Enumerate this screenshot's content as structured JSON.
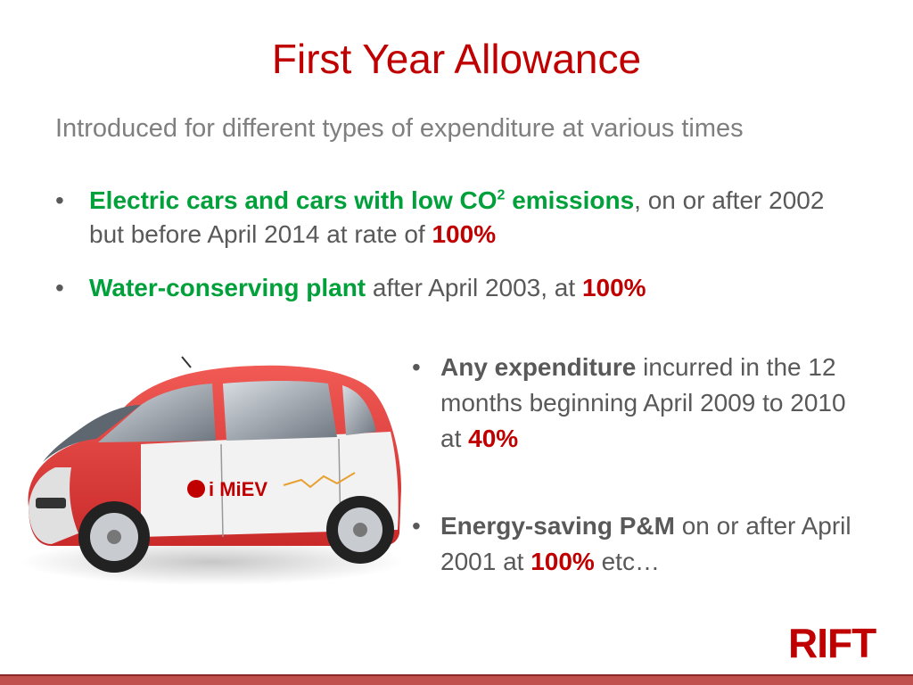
{
  "slide": {
    "title": "First Year Allowance",
    "subtitle": "Introduced for different types of expenditure at various times",
    "bullets_top": [
      {
        "highlight": "Electric cars and cars with low CO",
        "sup": "2",
        "highlight2": " emissions",
        "text": ", on or after 2002 but before April 2014 at rate of ",
        "rate": "100%"
      },
      {
        "highlight": "Water-conserving plant",
        "text": "  after April 2003, at ",
        "rate": "100%"
      }
    ],
    "bullets_right": [
      {
        "bold": "Any expenditure",
        "text": " incurred in the 12 months beginning April 2009 to 2010 at ",
        "rate": "40%"
      },
      {
        "bold": "Energy-saving P&M",
        "text": " on or after April 2001 at ",
        "rate": "100%",
        "tail": " etc…"
      }
    ],
    "car_badge": "i MiEV",
    "logo": "RIFT"
  },
  "colors": {
    "title": "#c00000",
    "green": "#00a03a",
    "red": "#c00000",
    "car_red": "#e03a3a"
  }
}
